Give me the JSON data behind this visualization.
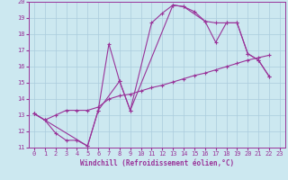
{
  "xlabel": "Windchill (Refroidissement éolien,°C)",
  "xlim": [
    -0.5,
    23.5
  ],
  "ylim": [
    11,
    20
  ],
  "xticks": [
    0,
    1,
    2,
    3,
    4,
    5,
    6,
    7,
    8,
    9,
    10,
    11,
    12,
    13,
    14,
    15,
    16,
    17,
    18,
    19,
    20,
    21,
    22,
    23
  ],
  "yticks": [
    11,
    12,
    13,
    14,
    15,
    16,
    17,
    18,
    19,
    20
  ],
  "background_color": "#cce8f0",
  "grid_color": "#aaccdd",
  "line_color": "#993399",
  "line1_x": [
    0,
    1,
    2,
    3,
    4,
    5,
    6,
    7,
    8,
    9,
    11,
    12,
    13,
    14,
    15,
    16,
    17,
    18,
    19,
    20,
    21,
    22
  ],
  "line1_y": [
    13.1,
    12.7,
    11.9,
    11.45,
    11.45,
    11.1,
    13.3,
    17.4,
    15.1,
    13.3,
    18.7,
    19.3,
    19.8,
    19.7,
    19.4,
    18.8,
    18.7,
    18.7,
    18.7,
    16.8,
    16.4,
    15.4
  ],
  "line2_x": [
    0,
    1,
    2,
    3,
    4,
    5,
    6,
    7,
    8,
    9,
    10,
    11,
    12,
    13,
    14,
    15,
    16,
    17,
    18,
    19,
    20,
    21,
    22
  ],
  "line2_y": [
    13.1,
    12.7,
    13.0,
    13.3,
    13.3,
    13.3,
    13.5,
    14.0,
    14.2,
    14.3,
    14.5,
    14.7,
    14.85,
    15.05,
    15.25,
    15.45,
    15.6,
    15.8,
    16.0,
    16.2,
    16.4,
    16.55,
    16.7
  ],
  "line3_x": [
    0,
    5,
    6,
    8,
    9,
    13,
    14,
    16,
    17,
    18,
    19,
    20,
    21,
    22
  ],
  "line3_y": [
    13.1,
    11.1,
    13.3,
    15.1,
    13.3,
    19.8,
    19.7,
    18.8,
    17.5,
    18.7,
    18.7,
    16.8,
    16.4,
    15.4
  ]
}
